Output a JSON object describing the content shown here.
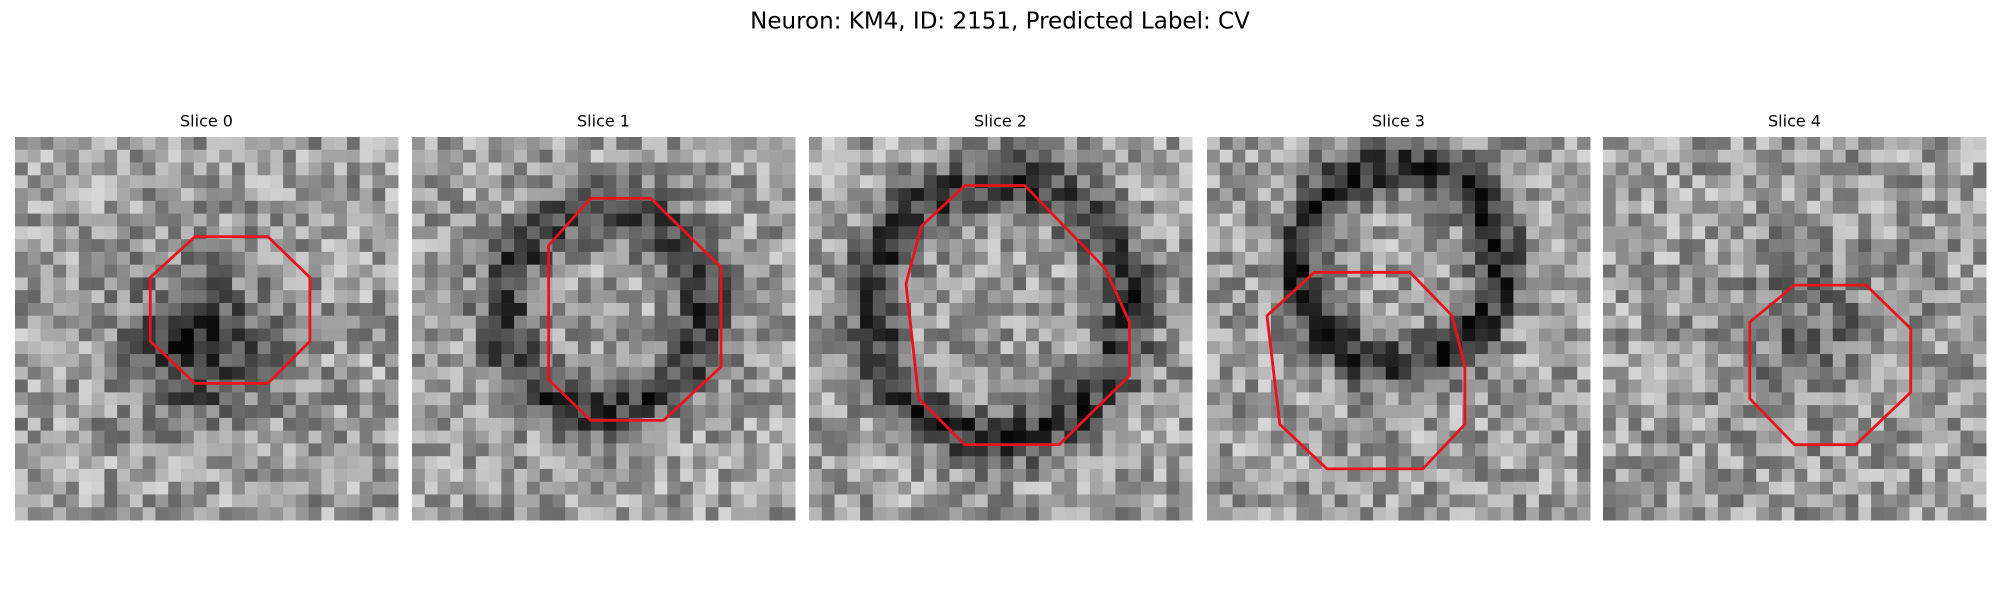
{
  "title": "Neuron: KM4, ID: 2151, Predicted Label: CV",
  "panels": [
    {
      "title": "Slice 0"
    },
    {
      "title": "Slice 1"
    },
    {
      "title": "Slice 2"
    },
    {
      "title": "Slice 3"
    },
    {
      "title": "Slice 4"
    }
  ]
}
